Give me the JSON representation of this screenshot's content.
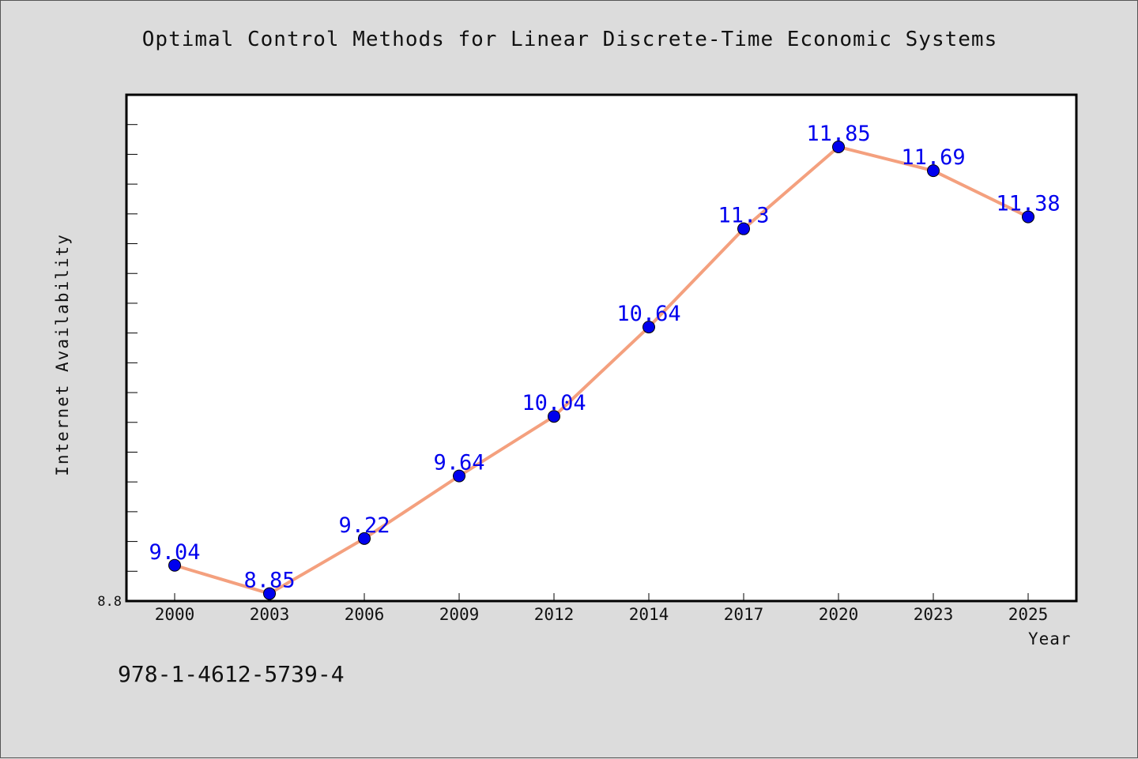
{
  "chart_data": {
    "type": "line",
    "title": "Optimal Control Methods for Linear Discrete-Time Economic Systems",
    "xlabel": "Year",
    "ylabel": "Internet Availability",
    "categories": [
      "2000",
      "2003",
      "2006",
      "2009",
      "2012",
      "2014",
      "2017",
      "2020",
      "2023",
      "2025"
    ],
    "series": [
      {
        "values": [
          9.04,
          8.85,
          9.22,
          9.64,
          10.04,
          10.64,
          11.3,
          11.85,
          11.69,
          11.38
        ],
        "labels": [
          "9.04",
          "8.85",
          "9.22",
          "9.64",
          "10.04",
          "10.64",
          "11.3",
          "11.85",
          "11.69",
          "11.38"
        ]
      }
    ],
    "ylim": [
      8.8,
      12.2
    ],
    "ytick_labels": [
      "8.8"
    ],
    "grid": false,
    "colors": {
      "line": "#f4a07e",
      "marker": "#0000ee",
      "label": "#0000ee"
    }
  },
  "footer": {
    "isbn": "978-1-4612-5739-4"
  }
}
